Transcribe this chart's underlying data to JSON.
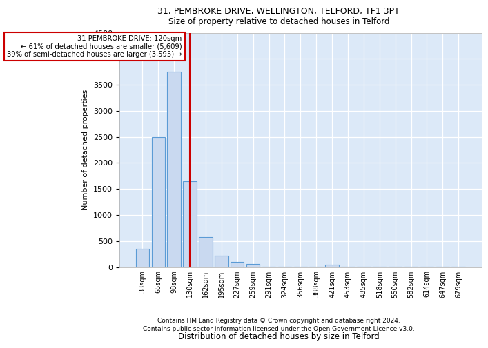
{
  "title1": "31, PEMBROKE DRIVE, WELLINGTON, TELFORD, TF1 3PT",
  "title2": "Size of property relative to detached houses in Telford",
  "xlabel": "Distribution of detached houses by size in Telford",
  "ylabel": "Number of detached properties",
  "footnote1": "Contains HM Land Registry data © Crown copyright and database right 2024.",
  "footnote2": "Contains public sector information licensed under the Open Government Licence v3.0.",
  "annotation_line1": "31 PEMBROKE DRIVE: 120sqm",
  "annotation_line2": "← 61% of detached houses are smaller (5,609)",
  "annotation_line3": "39% of semi-detached houses are larger (3,595) →",
  "bar_color": "#c9d9f0",
  "bar_edge_color": "#5b9bd5",
  "red_line_color": "#cc0000",
  "background_color": "#dce9f8",
  "categories": [
    "33sqm",
    "65sqm",
    "98sqm",
    "130sqm",
    "162sqm",
    "195sqm",
    "227sqm",
    "259sqm",
    "291sqm",
    "324sqm",
    "356sqm",
    "388sqm",
    "421sqm",
    "453sqm",
    "485sqm",
    "518sqm",
    "550sqm",
    "582sqm",
    "614sqm",
    "647sqm",
    "679sqm"
  ],
  "values": [
    350,
    2500,
    3750,
    1650,
    575,
    225,
    100,
    60,
    5,
    5,
    5,
    5,
    50,
    5,
    5,
    5,
    5,
    5,
    5,
    5,
    5
  ],
  "red_line_x": 3,
  "ylim": [
    0,
    4500
  ],
  "yticks": [
    0,
    500,
    1000,
    1500,
    2000,
    2500,
    3000,
    3500,
    4000,
    4500
  ]
}
